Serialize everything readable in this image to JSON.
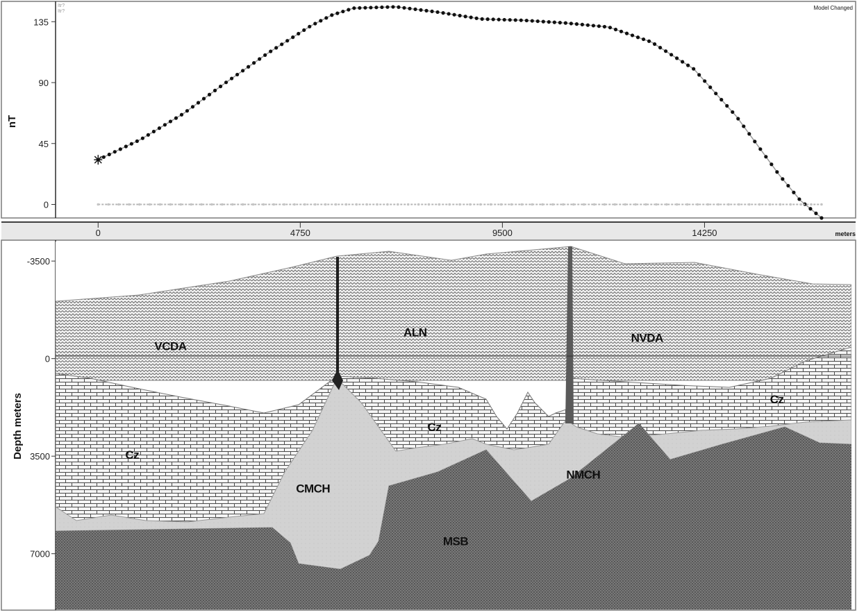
{
  "status_text": "Model Changed",
  "top_legend": [
    "Itr?",
    "Itr?"
  ],
  "chart_data": [
    {
      "type": "line",
      "ylabel": "nT",
      "yticks": [
        0,
        45,
        90,
        135
      ],
      "ylim": [
        -10,
        150
      ],
      "xlim": [
        -1000,
        17800
      ],
      "series": [
        {
          "x": [
            0,
            1000,
            2000,
            3000,
            4000,
            5000,
            5500,
            6000,
            7000,
            8000,
            9000,
            10000,
            11000,
            12000,
            13000,
            14000,
            15000,
            16000,
            16500,
            17000
          ],
          "values": [
            33,
            48,
            67,
            90,
            112,
            132,
            140,
            145,
            146,
            142,
            137,
            136,
            134,
            131,
            120,
            100,
            65,
            22,
            3,
            -10
          ]
        },
        {
          "x": [
            0,
            17000
          ],
          "values": [
            0,
            0
          ]
        }
      ]
    },
    {
      "type": "area",
      "xlabel": "meters",
      "ylabel": "Depth meters",
      "xticks": [
        0,
        4750,
        9500,
        14250
      ],
      "yticks": [
        -3500,
        0,
        3500,
        7000
      ],
      "xlim": [
        -1000,
        17800
      ],
      "ylim": [
        -4200,
        9000
      ],
      "unit_labels": [
        {
          "name": "VCDA",
          "x": 1700,
          "y": -300
        },
        {
          "name": "ALN",
          "x": 7450,
          "y": -800
        },
        {
          "name": "NVDA",
          "x": 12900,
          "y": -600
        },
        {
          "name": "Cz",
          "x": 800,
          "y": 3600
        },
        {
          "name": "Cz",
          "x": 7900,
          "y": 2600
        },
        {
          "name": "Cz",
          "x": 15950,
          "y": 1600
        },
        {
          "name": "CMCH",
          "x": 5050,
          "y": 4800
        },
        {
          "name": "NMCH",
          "x": 11400,
          "y": 4300
        },
        {
          "name": "MSB",
          "x": 8400,
          "y": 6700
        }
      ]
    }
  ]
}
